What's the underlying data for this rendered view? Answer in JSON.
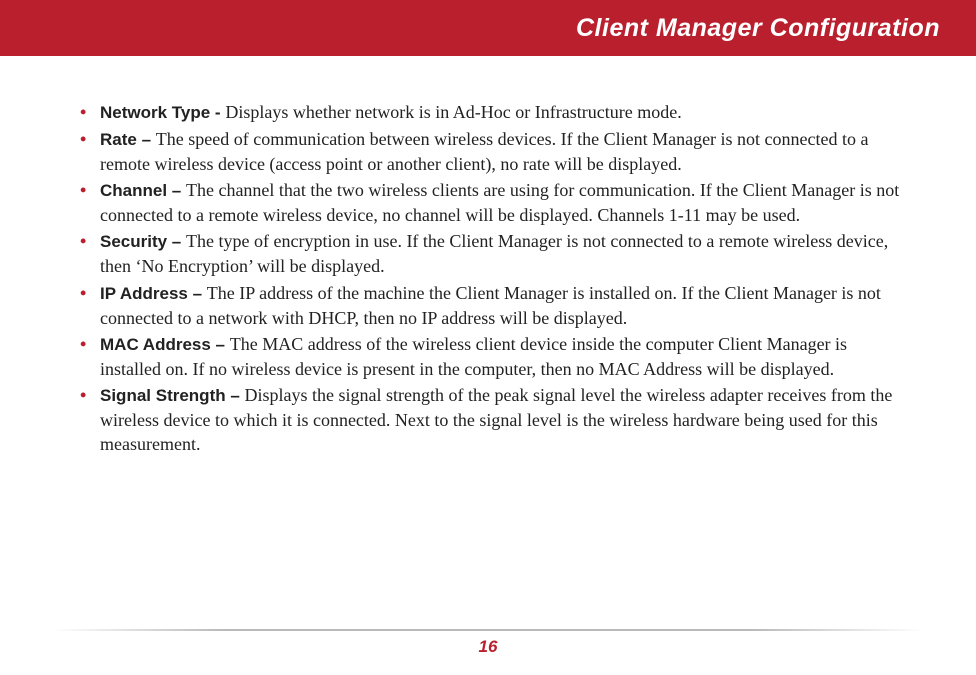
{
  "header": {
    "title": "Client Manager Configuration",
    "bg_color": "#ba1f2e",
    "title_color": "#ffffff"
  },
  "bullets": [
    {
      "term": "Network Type - ",
      "desc": "Displays whether network is in Ad-Hoc or Infrastructure mode."
    },
    {
      "term": "Rate – ",
      "desc": "The speed of communication between wireless devices.  If the Client Manager is not connected to a remote wireless device (access point or another client), no rate will be displayed."
    },
    {
      "term": "Channel – ",
      "desc": "The channel that the two wireless clients are using for communication.  If the Client Manager is not connected to a remote wireless device, no channel will be displayed.  Channels 1-11 may be used."
    },
    {
      "term": "Security – ",
      "desc": "The type of encryption in use.  If the Client Manager is not connected to a remote wireless device, then ‘No Encryption’ will be displayed."
    },
    {
      "term": "IP Address – ",
      "desc": "The IP address of the machine the Client Manager is installed on. If the Client Manager is not connected to a network with DHCP, then no IP address will be displayed."
    },
    {
      "term": "MAC Address – ",
      "desc": "The MAC address of the wireless client device inside the computer Client Manager is installed on. If no wireless device is present in the computer, then no MAC Address will be displayed."
    },
    {
      "term": "Signal Strength – ",
      "desc": "Displays the signal strength of the peak signal level the wireless adapter receives from the wireless device to which it is connected.  Next to the signal level is the wireless hardware being used for this measurement."
    }
  ],
  "footer": {
    "page_number": "16",
    "accent_color": "#ba1f2e"
  }
}
